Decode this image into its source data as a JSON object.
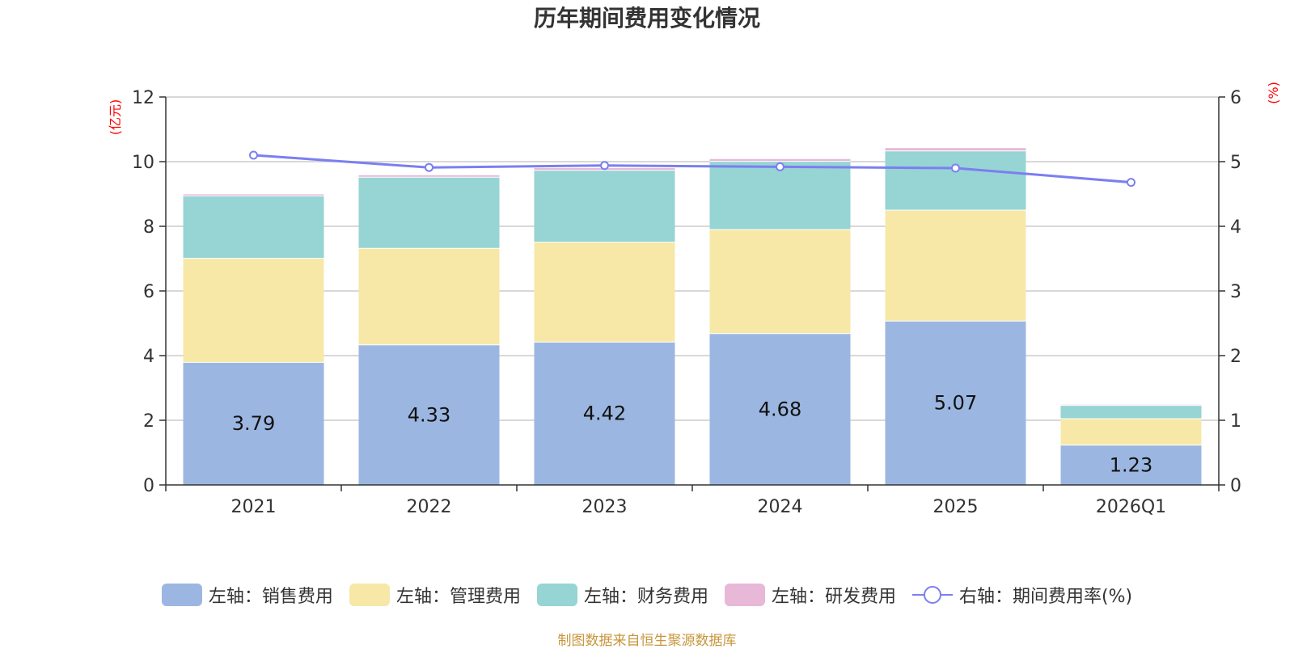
{
  "chart_data": {
    "type": "bar",
    "title": "历年期间费用变化情况",
    "categories": [
      "2021",
      "2022",
      "2023",
      "2024",
      "2025",
      "2026Q1"
    ],
    "left_axis": {
      "label": "(亿元)",
      "min": 0,
      "max": 12,
      "ticks": [
        "0",
        "2",
        "4",
        "6",
        "8",
        "10",
        "12"
      ]
    },
    "right_axis": {
      "label": "(%)",
      "min": 0,
      "max": 6,
      "ticks": [
        "0",
        "1",
        "2",
        "3",
        "4",
        "5",
        "6"
      ]
    },
    "series": [
      {
        "name": "左轴：销售费用",
        "type": "bar",
        "axis": "left",
        "color": "#9bb7e1",
        "values": [
          3.79,
          4.33,
          4.42,
          4.68,
          5.07,
          1.23
        ],
        "labels": [
          "3.79",
          "4.33",
          "4.42",
          "4.68",
          "5.07",
          "1.23"
        ]
      },
      {
        "name": "左轴：管理费用",
        "type": "bar",
        "axis": "left",
        "color": "#f7e8a8",
        "values": [
          3.22,
          2.99,
          3.09,
          3.22,
          3.43,
          0.82
        ]
      },
      {
        "name": "左轴：财务费用",
        "type": "bar",
        "axis": "left",
        "color": "#97d4d4",
        "values": [
          1.93,
          2.2,
          2.22,
          2.11,
          1.83,
          0.41
        ]
      },
      {
        "name": "左轴：研发费用",
        "type": "bar",
        "axis": "left",
        "color": "#e8b8d8",
        "values": [
          0.05,
          0.06,
          0.07,
          0.07,
          0.09,
          0.02
        ]
      },
      {
        "name": "右轴：期间费用率(%)",
        "type": "line",
        "axis": "right",
        "color": "#7b7ff0",
        "values": [
          5.1,
          4.91,
          4.94,
          4.92,
          4.9,
          4.68
        ]
      }
    ],
    "grid": true,
    "legend_position": "bottom"
  },
  "source_note": "制图数据来自恒生聚源数据库"
}
